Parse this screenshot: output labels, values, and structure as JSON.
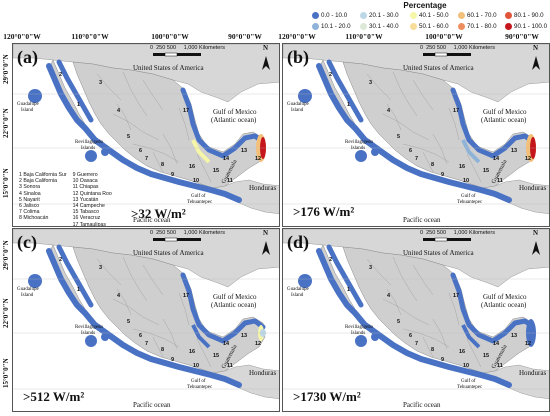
{
  "legend": {
    "title": "Percentage",
    "items": [
      {
        "label": "0.0 - 10.0",
        "color": "#4a72c4"
      },
      {
        "label": "20.1 - 30.0",
        "color": "#bcd8e6"
      },
      {
        "label": "40.1 - 50.0",
        "color": "#f6f6a8"
      },
      {
        "label": "60.1 - 70.0",
        "color": "#f3c07a"
      },
      {
        "label": "80.1 - 90.0",
        "color": "#e0543a"
      },
      {
        "label": "10.1 - 20.0",
        "color": "#8fb3d8"
      },
      {
        "label": "30.1 - 40.0",
        "color": "#dde8d6"
      },
      {
        "label": "50.1 - 60.0",
        "color": "#f8dc9a"
      },
      {
        "label": "70.1 - 80.0",
        "color": "#ed8e5e"
      },
      {
        "label": "90.1 - 100.0",
        "color": "#c4161c"
      }
    ]
  },
  "longitudes": [
    "120°0\"0\"W",
    "110°0\"0\"W",
    "100°0\"0\"W",
    "90°0\"0\"W",
    "120°0\"0\"W",
    "110°0\"0\"W",
    "100°0\"0\"W",
    "90°0\"0\"W"
  ],
  "latitudes": [
    "29°0\"0\"N",
    "22°0\"0\"N",
    "15°0\"0\"N"
  ],
  "common": {
    "usa": "United States of America",
    "gulf1": "Gulf of Mexico",
    "gulf2": "(Atlantic ocean)",
    "pacific": "Pacific ocean",
    "guadalupe1": "Guadalupe",
    "guadalupe2": "Island",
    "revilla1": "Revillagigedo",
    "revilla2": "Islands",
    "tehuan1": "Gulf of",
    "tehuan2": "Tehuantepec",
    "guatemala": "Guatemala",
    "honduras": "Honduras",
    "north": "N",
    "scale_ticks": [
      "0",
      "250",
      "500",
      "1,000 Kilometers"
    ]
  },
  "panels": [
    {
      "id": "a",
      "label": "(a)",
      "threshold": ">32 W/m²"
    },
    {
      "id": "b",
      "label": "(b)",
      "threshold": ">176 W/m²"
    },
    {
      "id": "c",
      "label": "(c)",
      "threshold": ">512 W/m²"
    },
    {
      "id": "d",
      "label": "(d)",
      "threshold": ">1730 W/m²"
    }
  ],
  "state_numbers": [
    "1",
    "2",
    "3",
    "4",
    "5",
    "6",
    "7",
    "8",
    "9",
    "10",
    "11",
    "12",
    "13",
    "14",
    "15",
    "16",
    "17"
  ],
  "states": [
    "1 Baja California Sur",
    "2 Baja California",
    "3 Sonora",
    "4 Sinaloa",
    "5 Nayarit",
    "6 Jalisco",
    "7 Colima",
    "8 Michoacán",
    "9 Guerrero",
    "10 Oaxaca",
    "11 Chiapas",
    "12 Quintana Roo",
    "13 Yucatán",
    "14 Campeche",
    "15 Tabasco",
    "16 Veracruz",
    "17 Tamaulipas"
  ]
}
